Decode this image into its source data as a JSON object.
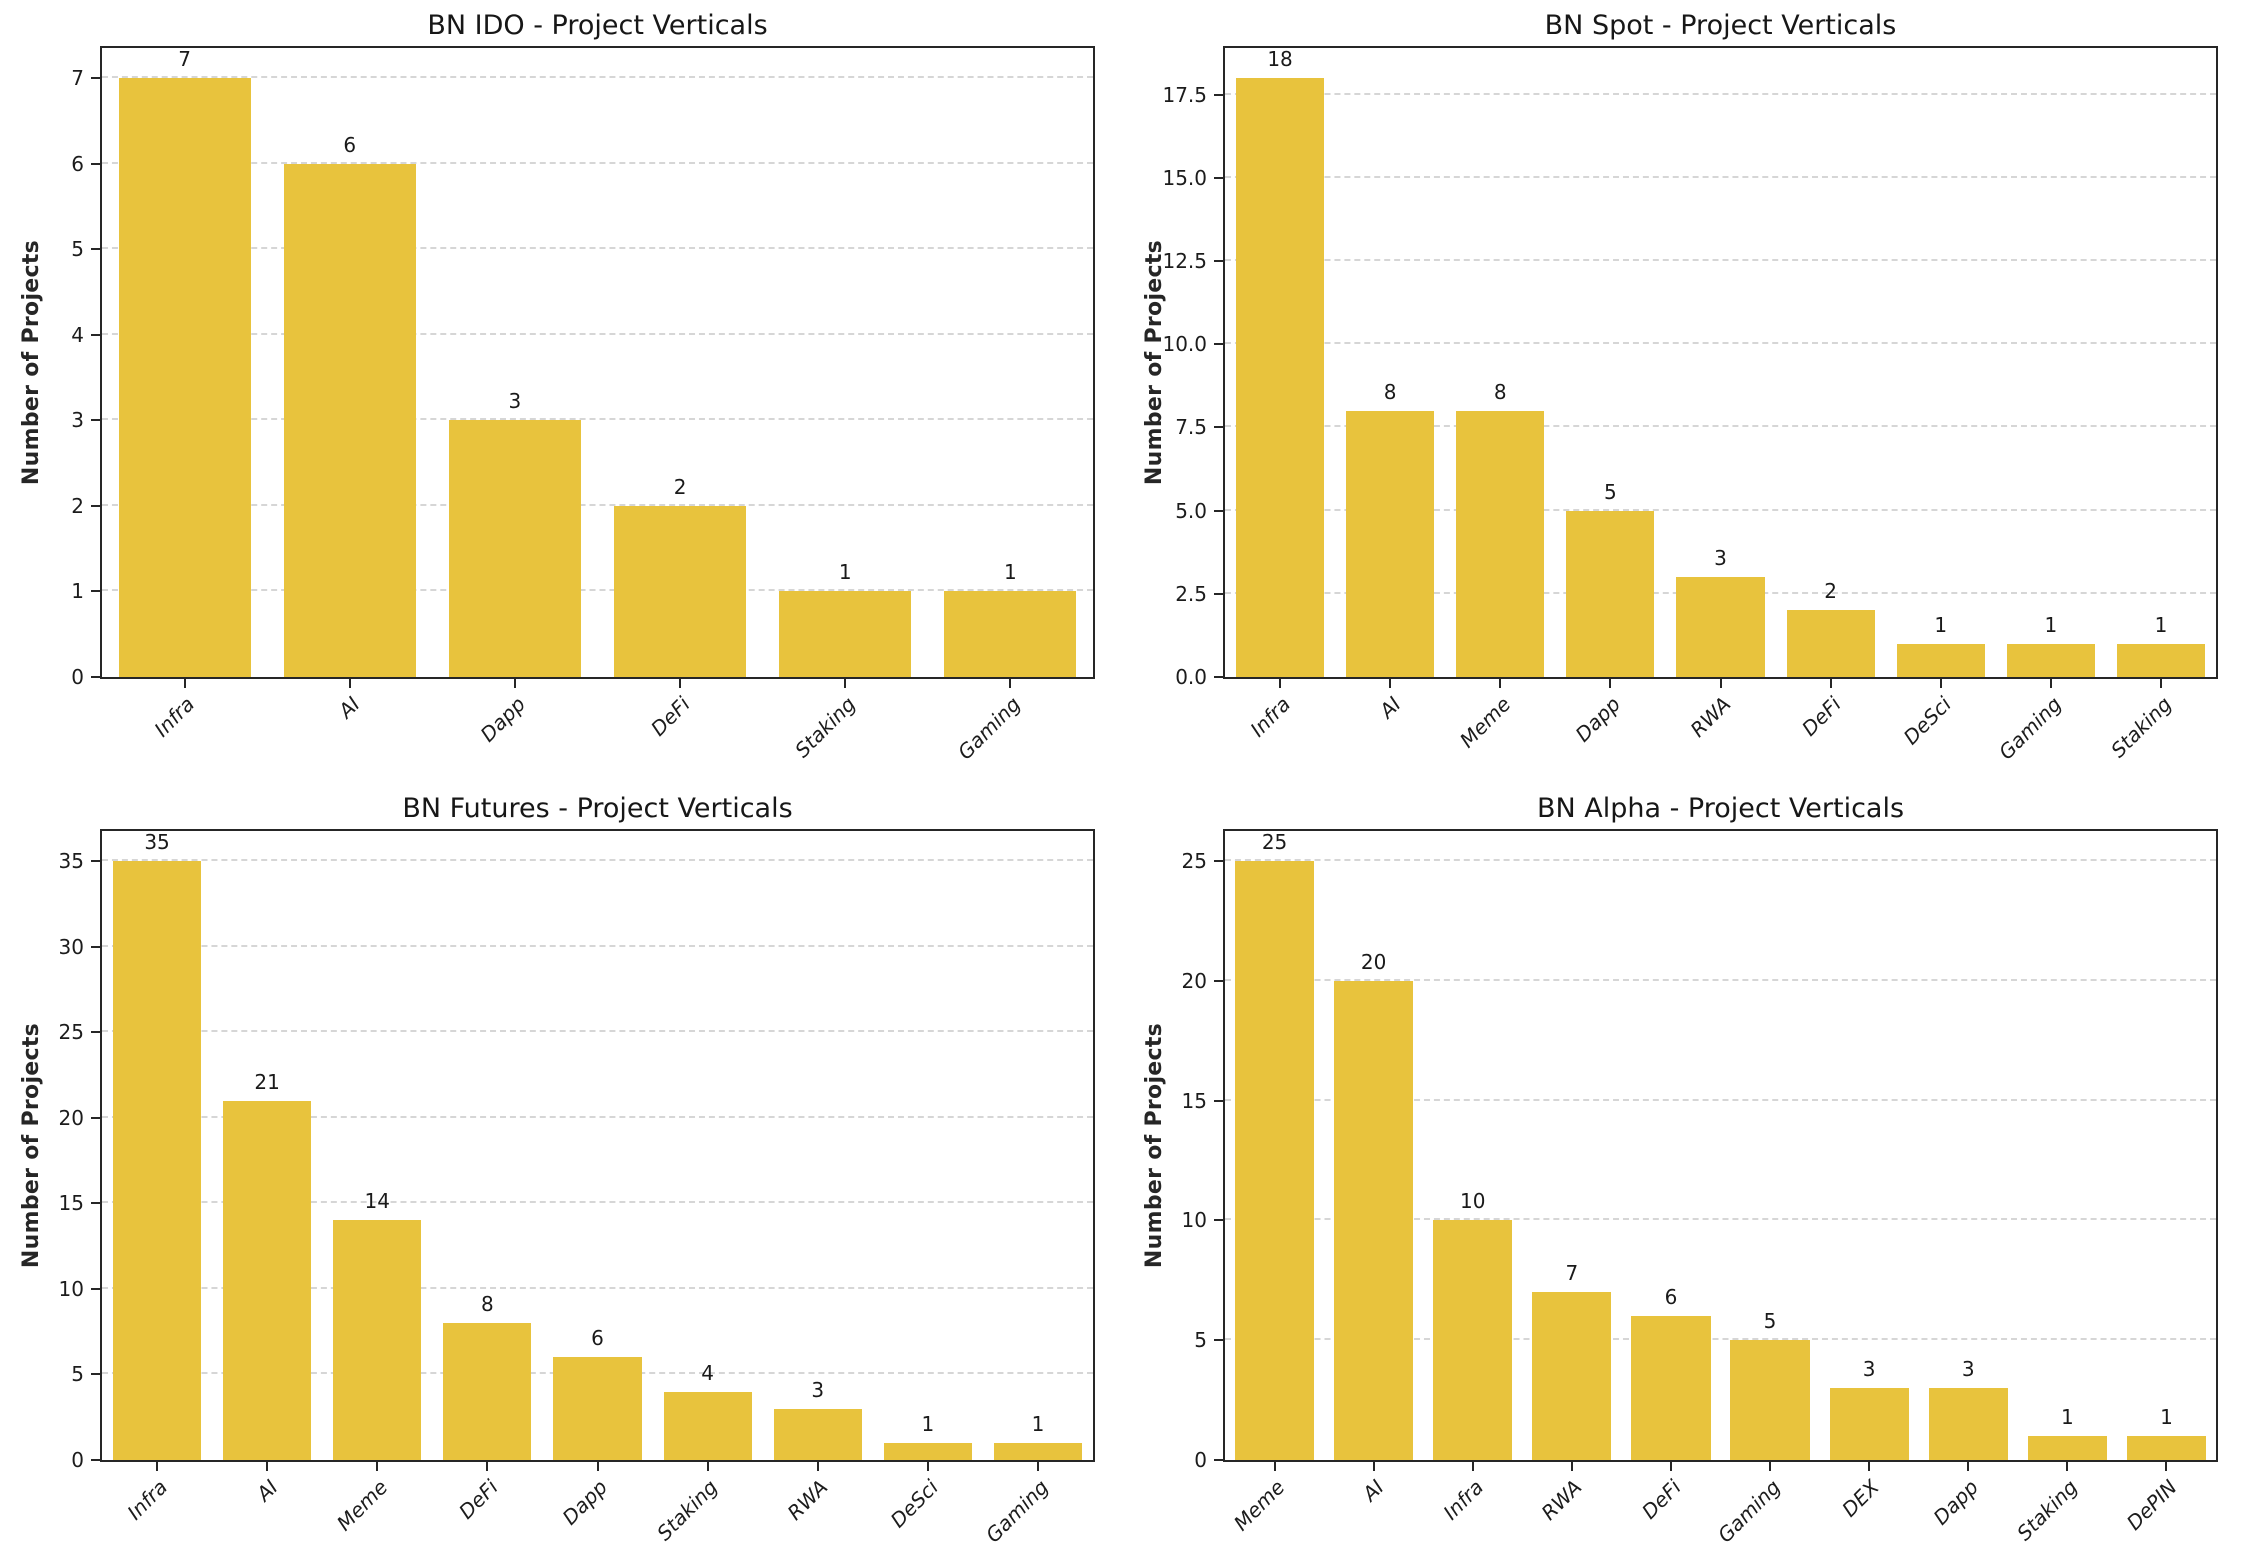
{
  "figure": {
    "background": "#ffffff",
    "bar_color": "#E8C33D",
    "grid_color": "#d6d6d6",
    "frame_color": "#262626",
    "text_color": "#1a1a1a"
  },
  "chart_data": [
    {
      "type": "bar",
      "title": "BN IDO - Project Verticals",
      "ylabel": "Number of Projects",
      "xlabel": "",
      "categories": [
        "Infra",
        "AI",
        "Dapp",
        "DeFi",
        "Staking",
        "Gaming"
      ],
      "values": [
        7,
        6,
        3,
        2,
        1,
        1
      ],
      "bar_labels": [
        "7",
        "6",
        "3",
        "2",
        "1",
        "1"
      ],
      "ytick_values": [
        0,
        1,
        2,
        3,
        4,
        5,
        6,
        7
      ],
      "ytick_labels": [
        "0",
        "1",
        "2",
        "3",
        "4",
        "5",
        "6",
        "7"
      ],
      "ylim": [
        0,
        7.35
      ],
      "grid": "horizontal-dashed",
      "legend": "none"
    },
    {
      "type": "bar",
      "title": "BN Spot - Project Verticals",
      "ylabel": "Number of Projects",
      "xlabel": "",
      "categories": [
        "Infra",
        "AI",
        "Meme",
        "Dapp",
        "RWA",
        "DeFi",
        "DeSci",
        "Gaming",
        "Staking"
      ],
      "values": [
        18,
        8,
        8,
        5,
        3,
        2,
        1,
        1,
        1
      ],
      "bar_labels": [
        "18",
        "8",
        "8",
        "5",
        "3",
        "2",
        "1",
        "1",
        "1"
      ],
      "ytick_values": [
        0,
        2.5,
        5,
        7.5,
        10,
        12.5,
        15,
        17.5
      ],
      "ytick_labels": [
        "0.0",
        "2.5",
        "5.0",
        "7.5",
        "10.0",
        "12.5",
        "15.0",
        "17.5"
      ],
      "ylim": [
        0,
        18.9
      ],
      "grid": "horizontal-dashed",
      "legend": "none"
    },
    {
      "type": "bar",
      "title": "BN Futures - Project Verticals",
      "ylabel": "Number of Projects",
      "xlabel": "",
      "categories": [
        "Infra",
        "AI",
        "Meme",
        "DeFi",
        "Dapp",
        "Staking",
        "RWA",
        "DeSci",
        "Gaming"
      ],
      "values": [
        35,
        21,
        14,
        8,
        6,
        4,
        3,
        1,
        1
      ],
      "bar_labels": [
        "35",
        "21",
        "14",
        "8",
        "6",
        "4",
        "3",
        "1",
        "1"
      ],
      "ytick_values": [
        0,
        5,
        10,
        15,
        20,
        25,
        30,
        35
      ],
      "ytick_labels": [
        "0",
        "5",
        "10",
        "15",
        "20",
        "25",
        "30",
        "35"
      ],
      "ylim": [
        0,
        36.75
      ],
      "grid": "horizontal-dashed",
      "legend": "none"
    },
    {
      "type": "bar",
      "title": "BN Alpha - Project Verticals",
      "ylabel": "Number of Projects",
      "xlabel": "",
      "categories": [
        "Meme",
        "AI",
        "Infra",
        "RWA",
        "DeFi",
        "Gaming",
        "DEX",
        "Dapp",
        "Staking",
        "DePIN"
      ],
      "values": [
        25,
        20,
        10,
        7,
        6,
        5,
        3,
        3,
        1,
        1
      ],
      "bar_labels": [
        "25",
        "20",
        "10",
        "7",
        "6",
        "5",
        "3",
        "3",
        "1",
        "1"
      ],
      "ytick_values": [
        0,
        5,
        10,
        15,
        20,
        25
      ],
      "ytick_labels": [
        "0",
        "5",
        "10",
        "15",
        "20",
        "25"
      ],
      "ylim": [
        0,
        26.25
      ],
      "grid": "horizontal-dashed",
      "legend": "none"
    }
  ]
}
